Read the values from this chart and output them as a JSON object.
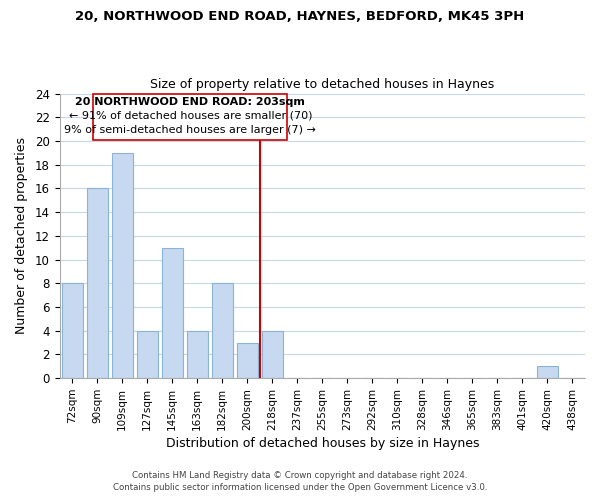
{
  "title1": "20, NORTHWOOD END ROAD, HAYNES, BEDFORD, MK45 3PH",
  "title2": "Size of property relative to detached houses in Haynes",
  "xlabel": "Distribution of detached houses by size in Haynes",
  "ylabel": "Number of detached properties",
  "bar_labels": [
    "72sqm",
    "90sqm",
    "109sqm",
    "127sqm",
    "145sqm",
    "163sqm",
    "182sqm",
    "200sqm",
    "218sqm",
    "237sqm",
    "255sqm",
    "273sqm",
    "292sqm",
    "310sqm",
    "328sqm",
    "346sqm",
    "365sqm",
    "383sqm",
    "401sqm",
    "420sqm",
    "438sqm"
  ],
  "bar_values": [
    8,
    16,
    19,
    4,
    11,
    4,
    8,
    3,
    4,
    0,
    0,
    0,
    0,
    0,
    0,
    0,
    0,
    0,
    0,
    1,
    0
  ],
  "bar_color": "#c6d9f0",
  "bar_edge_color": "#8db3d4",
  "marker_line_color": "#cc0000",
  "marker_box_color": "#ffffff",
  "marker_box_edge_color": "#cc0000",
  "annotation_line1": "20 NORTHWOOD END ROAD: 203sqm",
  "annotation_line2": "← 91% of detached houses are smaller (70)",
  "annotation_line3": "9% of semi-detached houses are larger (7) →",
  "ylim": [
    0,
    24
  ],
  "yticks": [
    0,
    2,
    4,
    6,
    8,
    10,
    12,
    14,
    16,
    18,
    20,
    22,
    24
  ],
  "footer1": "Contains HM Land Registry data © Crown copyright and database right 2024.",
  "footer2": "Contains public sector information licensed under the Open Government Licence v3.0.",
  "bg_color": "#ffffff",
  "grid_color": "#c8d8ea"
}
